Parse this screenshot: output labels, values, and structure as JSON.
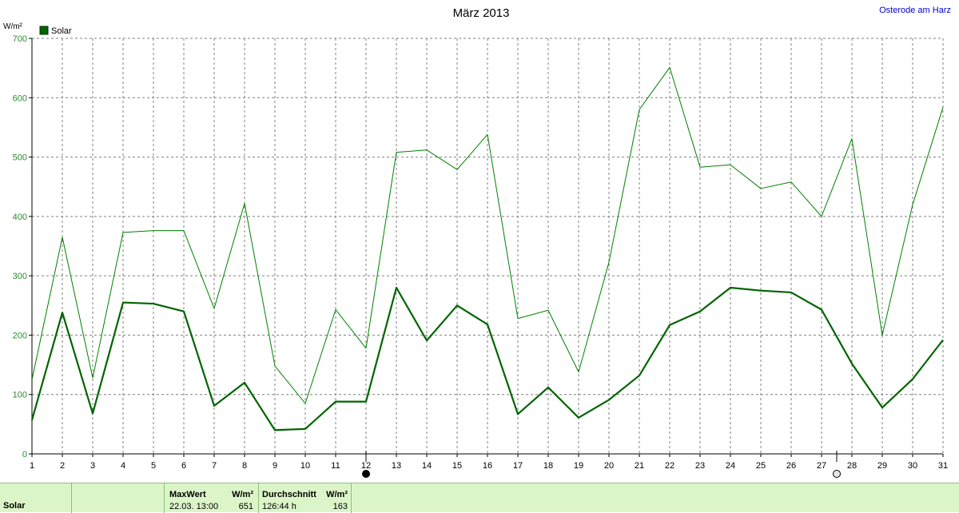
{
  "header": {
    "title": "März 2013",
    "location": "Osterode am Harz",
    "unit": "W/m²"
  },
  "legend": {
    "label": "Solar",
    "color": "#006400"
  },
  "chart_data": {
    "type": "line",
    "title": "März 2013",
    "ylabel": "W/m²",
    "xlabel": "",
    "x": [
      1,
      2,
      3,
      4,
      5,
      6,
      7,
      8,
      9,
      10,
      11,
      12,
      13,
      14,
      15,
      16,
      17,
      18,
      19,
      20,
      21,
      22,
      23,
      24,
      25,
      26,
      27,
      28,
      29,
      30,
      31
    ],
    "xlim": [
      1,
      31
    ],
    "ylim": [
      0,
      700
    ],
    "yticks": [
      0,
      100,
      200,
      300,
      400,
      500,
      600,
      700
    ],
    "grid": true,
    "legend_position": "top-left",
    "series": [
      {
        "name": "Solar",
        "style": "thin",
        "color": "#008000",
        "values": [
          125,
          365,
          128,
          373,
          376,
          376,
          245,
          422,
          148,
          85,
          243,
          178,
          508,
          512,
          479,
          538,
          228,
          242,
          138,
          323,
          580,
          651,
          483,
          487,
          447,
          458,
          400,
          531,
          200,
          420,
          584
        ]
      },
      {
        "name": "",
        "style": "thick",
        "color": "#006400",
        "values": [
          57,
          238,
          68,
          255,
          253,
          240,
          81,
          120,
          40,
          42,
          88,
          88,
          280,
          191,
          250,
          218,
          67,
          112,
          61,
          91,
          132,
          217,
          240,
          280,
          275,
          272,
          243,
          152,
          78,
          126,
          192
        ]
      }
    ],
    "moon_markers": [
      {
        "phase": "new",
        "x": 12
      },
      {
        "phase": "full",
        "x": 27.5
      }
    ]
  },
  "stats": {
    "series_label": "Solar",
    "max_header": "MaxWert",
    "max_unit": "W/m²",
    "max_datetime": "22.03.  13:00",
    "max_value": "651",
    "avg_header": "Durchschnitt",
    "avg_unit": "W/m²",
    "avg_duration": "126:44 h",
    "avg_value": "163"
  },
  "colors": {
    "grid": "#808080",
    "axis_labels": "#2d8a2d",
    "panel_bg": "#dcf5c8",
    "location": "#0000cc"
  }
}
